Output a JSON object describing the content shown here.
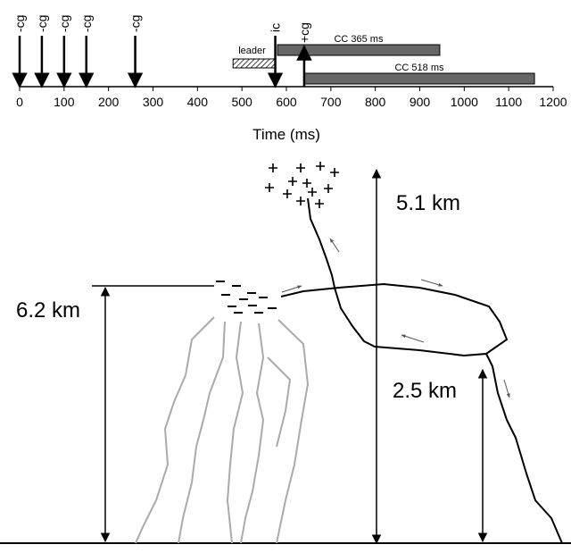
{
  "timeline": {
    "xlim": [
      0,
      1200
    ],
    "xticks": [
      0,
      100,
      200,
      300,
      400,
      500,
      600,
      700,
      800,
      900,
      1000,
      1100,
      1200
    ],
    "xlabel": "Time (ms)",
    "events": [
      {
        "label": "-cg",
        "time": 0
      },
      {
        "label": "-cg",
        "time": 50
      },
      {
        "label": "-cg",
        "time": 100
      },
      {
        "label": "-cg",
        "time": 150
      },
      {
        "label": "-cg",
        "time": 260
      },
      {
        "label": "ic",
        "time": 575
      },
      {
        "label": "+cg",
        "time": 640
      }
    ],
    "leader": {
      "label": "leader",
      "start": 480,
      "end": 575
    },
    "bars": [
      {
        "label": "CC 365 ms",
        "start": 580,
        "end": 945
      },
      {
        "label": "CC 518 ms",
        "start": 640,
        "end": 1158
      }
    ]
  },
  "diagram": {
    "top_label": "5.1 km",
    "left_label": "6.2 km",
    "right_label": "2.5 km"
  }
}
